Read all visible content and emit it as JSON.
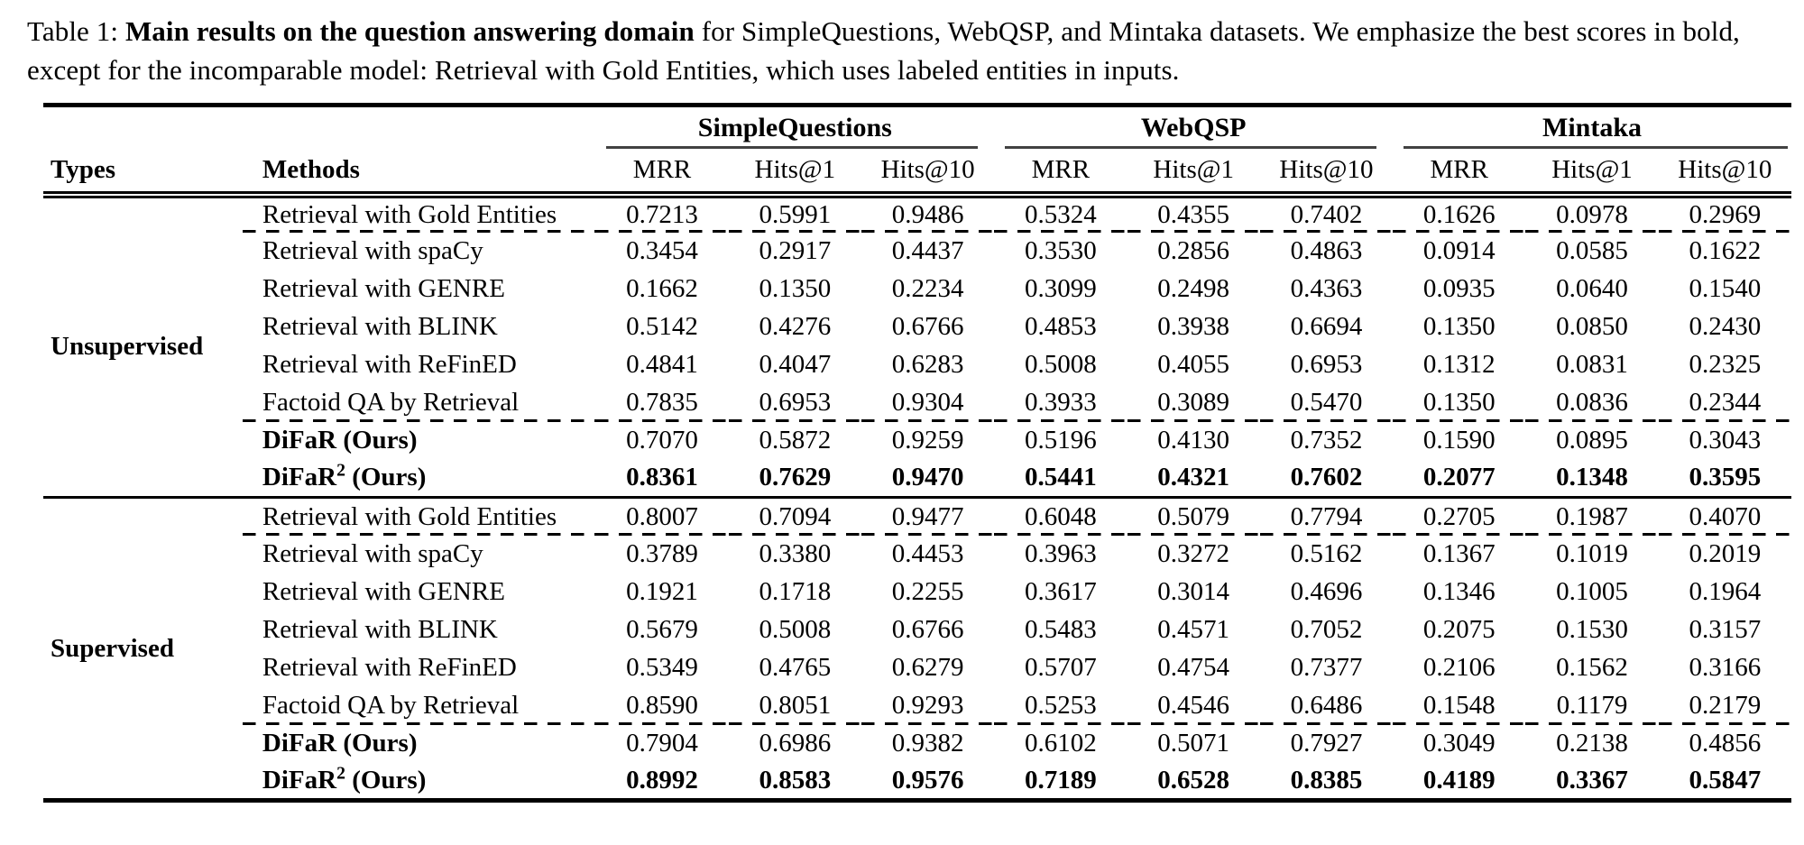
{
  "caption": {
    "prefix": "Table 1:",
    "bold": "Main results on the question answering domain",
    "rest": "for SimpleQuestions, WebQSP, and Mintaka datasets. We emphasize the best scores in bold, except for the incomparable model: Retrieval with Gold Entities, which uses labeled entities in inputs."
  },
  "colors": {
    "text": "#000000",
    "background": "#ffffff",
    "rule": "#000000",
    "cmidrule": "#424242"
  },
  "table": {
    "col_headers": {
      "types": "Types",
      "methods": "Methods"
    },
    "groups": [
      {
        "label": "SimpleQuestions",
        "metrics": [
          "MRR",
          "Hits@1",
          "Hits@10"
        ]
      },
      {
        "label": "WebQSP",
        "metrics": [
          "MRR",
          "Hits@1",
          "Hits@10"
        ]
      },
      {
        "label": "Mintaka",
        "metrics": [
          "MRR",
          "Hits@1",
          "Hits@10"
        ]
      }
    ],
    "sections": [
      {
        "type": "Unsupervised",
        "rows": [
          {
            "method": "Retrieval with Gold Entities",
            "dashed_after": true,
            "values": [
              "0.7213",
              "0.5991",
              "0.9486",
              "0.5324",
              "0.4355",
              "0.7402",
              "0.1626",
              "0.0978",
              "0.2969"
            ]
          },
          {
            "method": "Retrieval with spaCy",
            "values": [
              "0.3454",
              "0.2917",
              "0.4437",
              "0.3530",
              "0.2856",
              "0.4863",
              "0.0914",
              "0.0585",
              "0.1622"
            ]
          },
          {
            "method": "Retrieval with GENRE",
            "values": [
              "0.1662",
              "0.1350",
              "0.2234",
              "0.3099",
              "0.2498",
              "0.4363",
              "0.0935",
              "0.0640",
              "0.1540"
            ]
          },
          {
            "method": "Retrieval with BLINK",
            "values": [
              "0.5142",
              "0.4276",
              "0.6766",
              "0.4853",
              "0.3938",
              "0.6694",
              "0.1350",
              "0.0850",
              "0.2430"
            ]
          },
          {
            "method": "Retrieval with ReFinED",
            "values": [
              "0.4841",
              "0.4047",
              "0.6283",
              "0.5008",
              "0.4055",
              "0.6953",
              "0.1312",
              "0.0831",
              "0.2325"
            ]
          },
          {
            "method": "Factoid QA by Retrieval",
            "dashed_after": true,
            "values": [
              "0.7835",
              "0.6953",
              "0.9304",
              "0.3933",
              "0.3089",
              "0.5470",
              "0.1350",
              "0.0836",
              "0.2344"
            ]
          },
          {
            "method": "DiFaR",
            "method_rest": " (Ours)",
            "method_bold": true,
            "values": [
              "0.7070",
              "0.5872",
              "0.9259",
              "0.5196",
              "0.4130",
              "0.7352",
              "0.1590",
              "0.0895",
              "0.3043"
            ]
          },
          {
            "method": "DiFaR",
            "sup": "2",
            "method_rest": " (Ours)",
            "method_bold": true,
            "values_bold": true,
            "values": [
              "0.8361",
              "0.7629",
              "0.9470",
              "0.5441",
              "0.4321",
              "0.7602",
              "0.2077",
              "0.1348",
              "0.3595"
            ]
          }
        ]
      },
      {
        "type": "Supervised",
        "rows": [
          {
            "method": "Retrieval with Gold Entities",
            "dashed_after": true,
            "values": [
              "0.8007",
              "0.7094",
              "0.9477",
              "0.6048",
              "0.5079",
              "0.7794",
              "0.2705",
              "0.1987",
              "0.4070"
            ]
          },
          {
            "method": "Retrieval with spaCy",
            "values": [
              "0.3789",
              "0.3380",
              "0.4453",
              "0.3963",
              "0.3272",
              "0.5162",
              "0.1367",
              "0.1019",
              "0.2019"
            ]
          },
          {
            "method": "Retrieval with GENRE",
            "values": [
              "0.1921",
              "0.1718",
              "0.2255",
              "0.3617",
              "0.3014",
              "0.4696",
              "0.1346",
              "0.1005",
              "0.1964"
            ]
          },
          {
            "method": "Retrieval with BLINK",
            "values": [
              "0.5679",
              "0.5008",
              "0.6766",
              "0.5483",
              "0.4571",
              "0.7052",
              "0.2075",
              "0.1530",
              "0.3157"
            ]
          },
          {
            "method": "Retrieval with ReFinED",
            "values": [
              "0.5349",
              "0.4765",
              "0.6279",
              "0.5707",
              "0.4754",
              "0.7377",
              "0.2106",
              "0.1562",
              "0.3166"
            ]
          },
          {
            "method": "Factoid QA by Retrieval",
            "dashed_after": true,
            "values": [
              "0.8590",
              "0.8051",
              "0.9293",
              "0.5253",
              "0.4546",
              "0.6486",
              "0.1548",
              "0.1179",
              "0.2179"
            ]
          },
          {
            "method": "DiFaR",
            "method_rest": " (Ours)",
            "method_bold": true,
            "values": [
              "0.7904",
              "0.6986",
              "0.9382",
              "0.6102",
              "0.5071",
              "0.7927",
              "0.3049",
              "0.2138",
              "0.4856"
            ]
          },
          {
            "method": "DiFaR",
            "sup": "2",
            "method_rest": " (Ours)",
            "method_bold": true,
            "values_bold": true,
            "values": [
              "0.8992",
              "0.8583",
              "0.9576",
              "0.7189",
              "0.6528",
              "0.8385",
              "0.4189",
              "0.3367",
              "0.5847"
            ]
          }
        ]
      }
    ]
  }
}
